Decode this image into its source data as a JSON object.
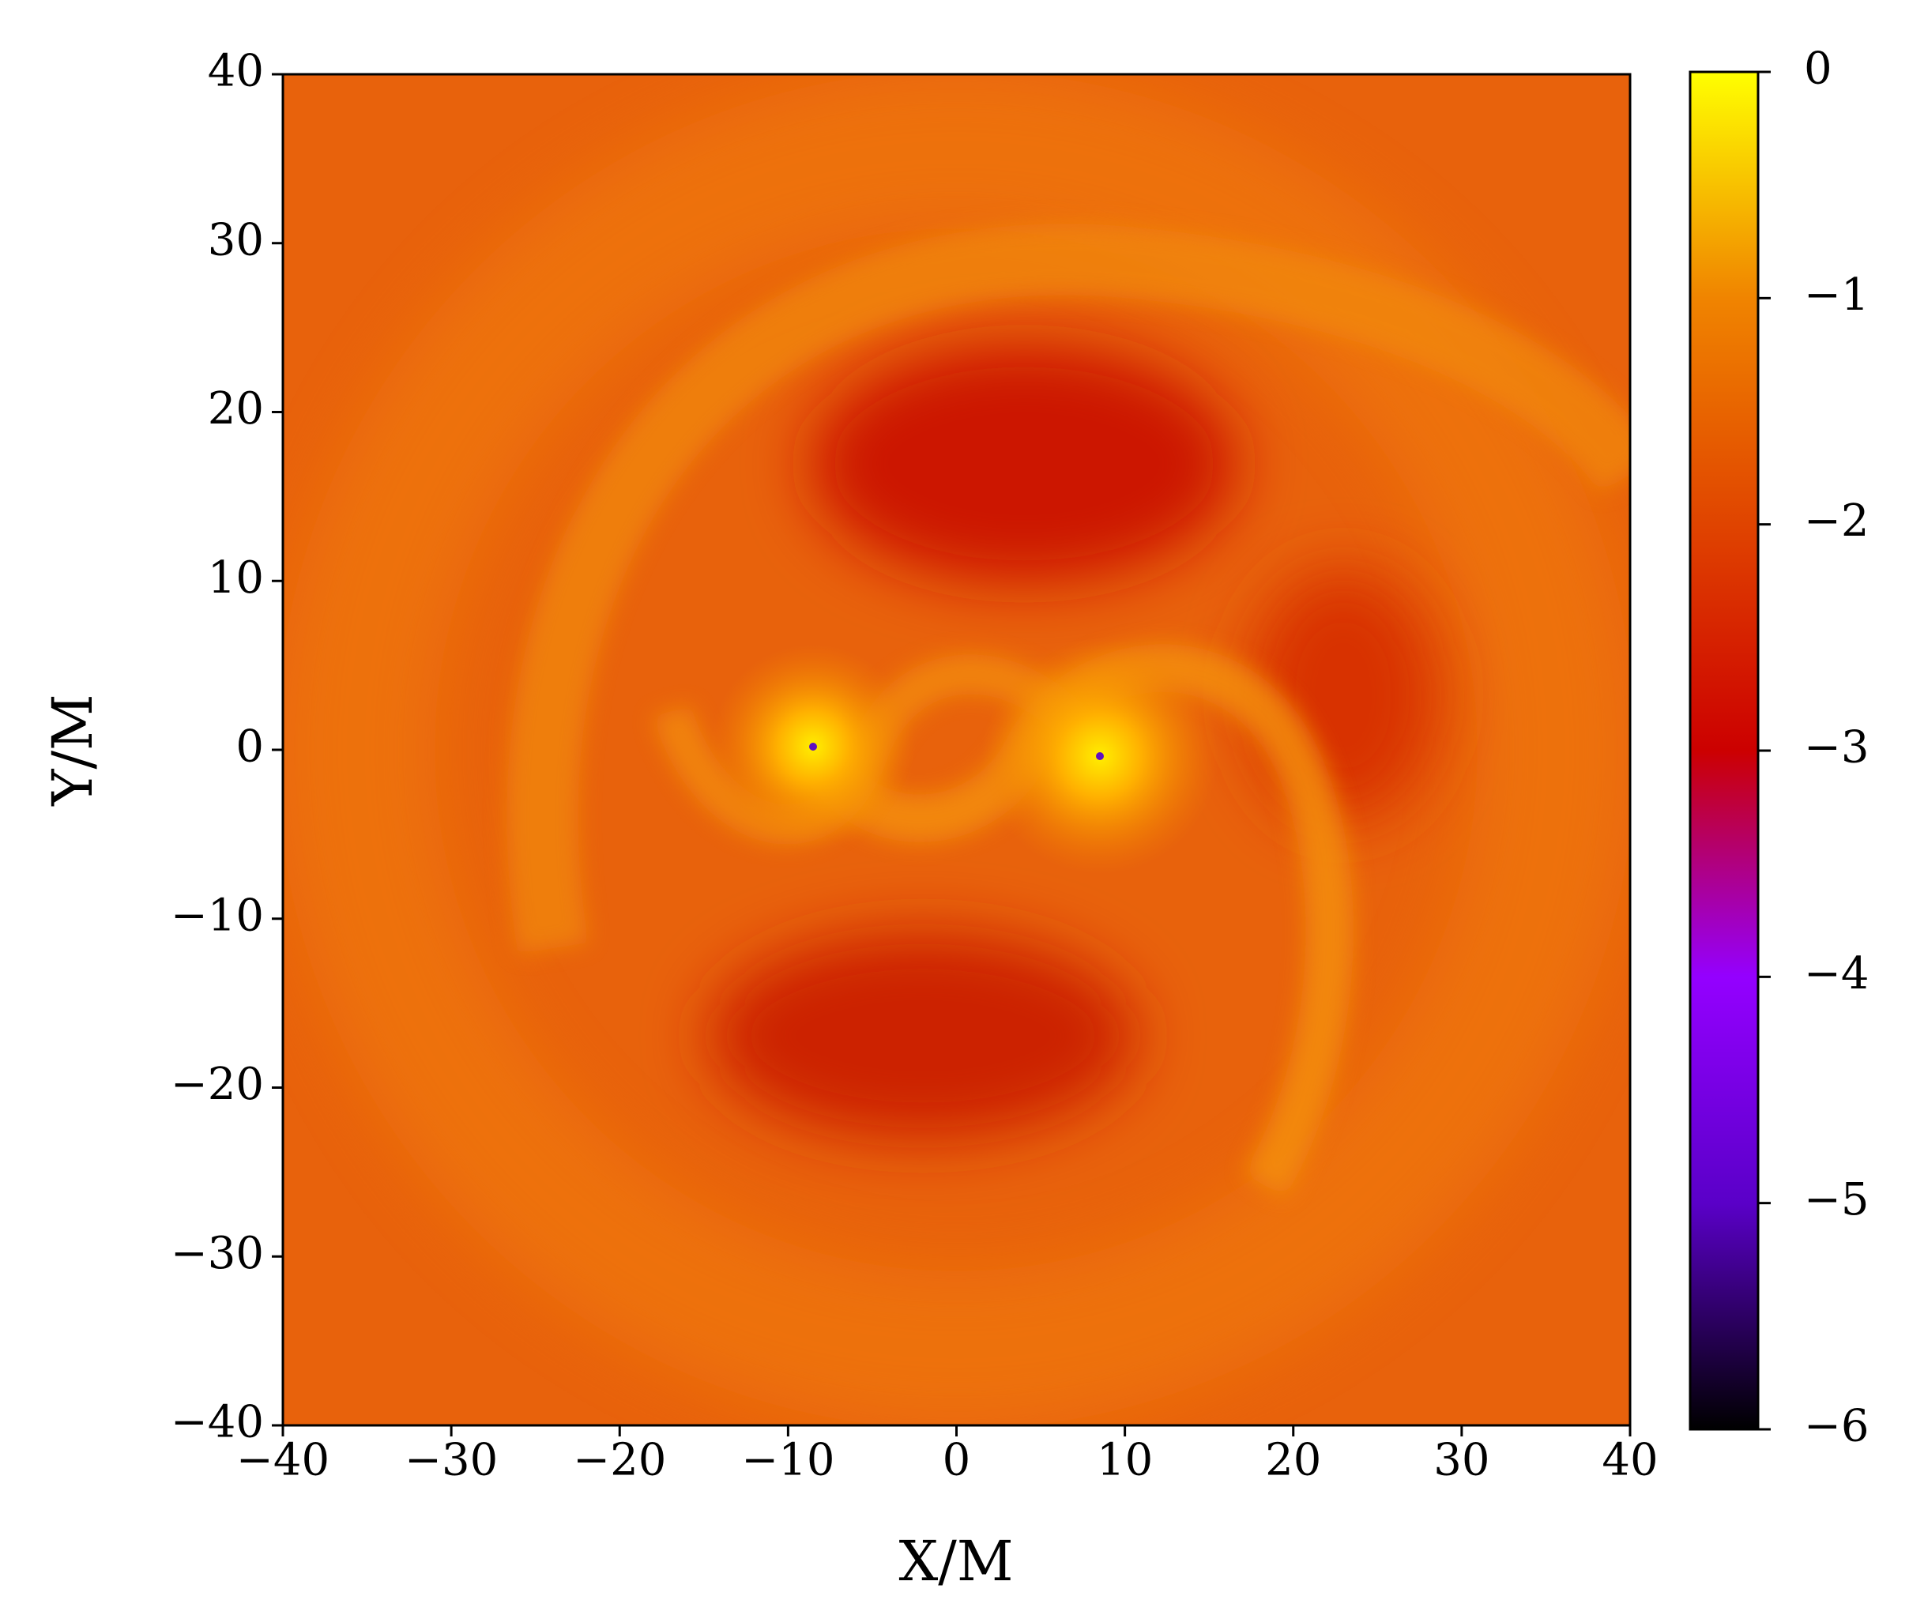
{
  "chart_data": {
    "type": "heatmap",
    "xlabel": "X/M",
    "ylabel": "Y/M",
    "xlim": [
      -40,
      40
    ],
    "ylim": [
      -40,
      40
    ],
    "xticks": [
      {
        "value": -40,
        "label": "−40"
      },
      {
        "value": -30,
        "label": "−30"
      },
      {
        "value": -20,
        "label": "−20"
      },
      {
        "value": -10,
        "label": "−10"
      },
      0,
      10,
      20,
      30,
      40
    ],
    "yticks": [
      {
        "value": -40,
        "label": "−40"
      },
      {
        "value": -30,
        "label": "−30"
      },
      {
        "value": -20,
        "label": "−20"
      },
      {
        "value": -10,
        "label": "−10"
      },
      0,
      10,
      20,
      30,
      40
    ],
    "colorbar": {
      "clim": [
        -6,
        0
      ],
      "ticks": [
        {
          "value": -6,
          "label": "−6"
        },
        {
          "value": -5,
          "label": "−5"
        },
        {
          "value": -4,
          "label": "−4"
        },
        {
          "value": -3,
          "label": "−3"
        },
        {
          "value": -2,
          "label": "−2"
        },
        {
          "value": -1,
          "label": "−1"
        },
        0
      ],
      "colormap": [
        "#000000",
        "#5a00c8",
        "#9400ff",
        "#cc0000",
        "#e04400",
        "#f08400",
        "#ffff00"
      ]
    }
  }
}
